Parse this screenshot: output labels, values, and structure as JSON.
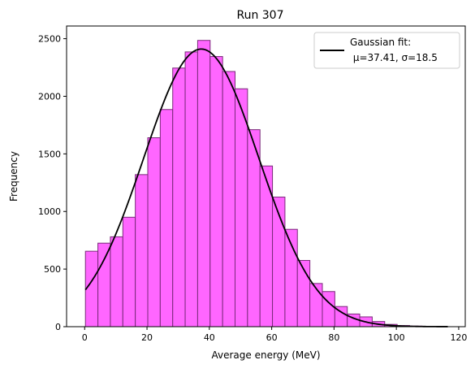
{
  "chart_data": {
    "type": "bar",
    "title": "Run 307",
    "xlabel": "Average energy (MeV)",
    "ylabel": "Frequency",
    "xlim": [
      -5.8,
      122.1
    ],
    "ylim": [
      0,
      2610
    ],
    "xticks": [
      0,
      20,
      40,
      60,
      80,
      100,
      120
    ],
    "yticks": [
      0,
      500,
      1000,
      1500,
      2000,
      2500
    ],
    "grid": false,
    "legend_position": "top-right",
    "histogram": {
      "bin_width": 4.0,
      "bin_edges_start": 0.25,
      "counts": [
        655,
        725,
        780,
        950,
        1320,
        1640,
        1885,
        2245,
        2385,
        2485,
        2345,
        2215,
        2065,
        1710,
        1395,
        1125,
        845,
        575,
        375,
        305,
        175,
        110,
        85,
        45,
        20,
        10,
        5,
        2,
        1
      ],
      "fill_color": "#ff66ff",
      "edge_color": "#7a2a7a"
    },
    "fit": {
      "legend_line1": "Gaussian fit:",
      "legend_line2": " μ=37.41, σ=18.5",
      "mu": 37.41,
      "sigma": 18.5,
      "amplitude": 2410,
      "x_range": [
        0.25,
        116.5
      ],
      "color": "#000000"
    }
  }
}
